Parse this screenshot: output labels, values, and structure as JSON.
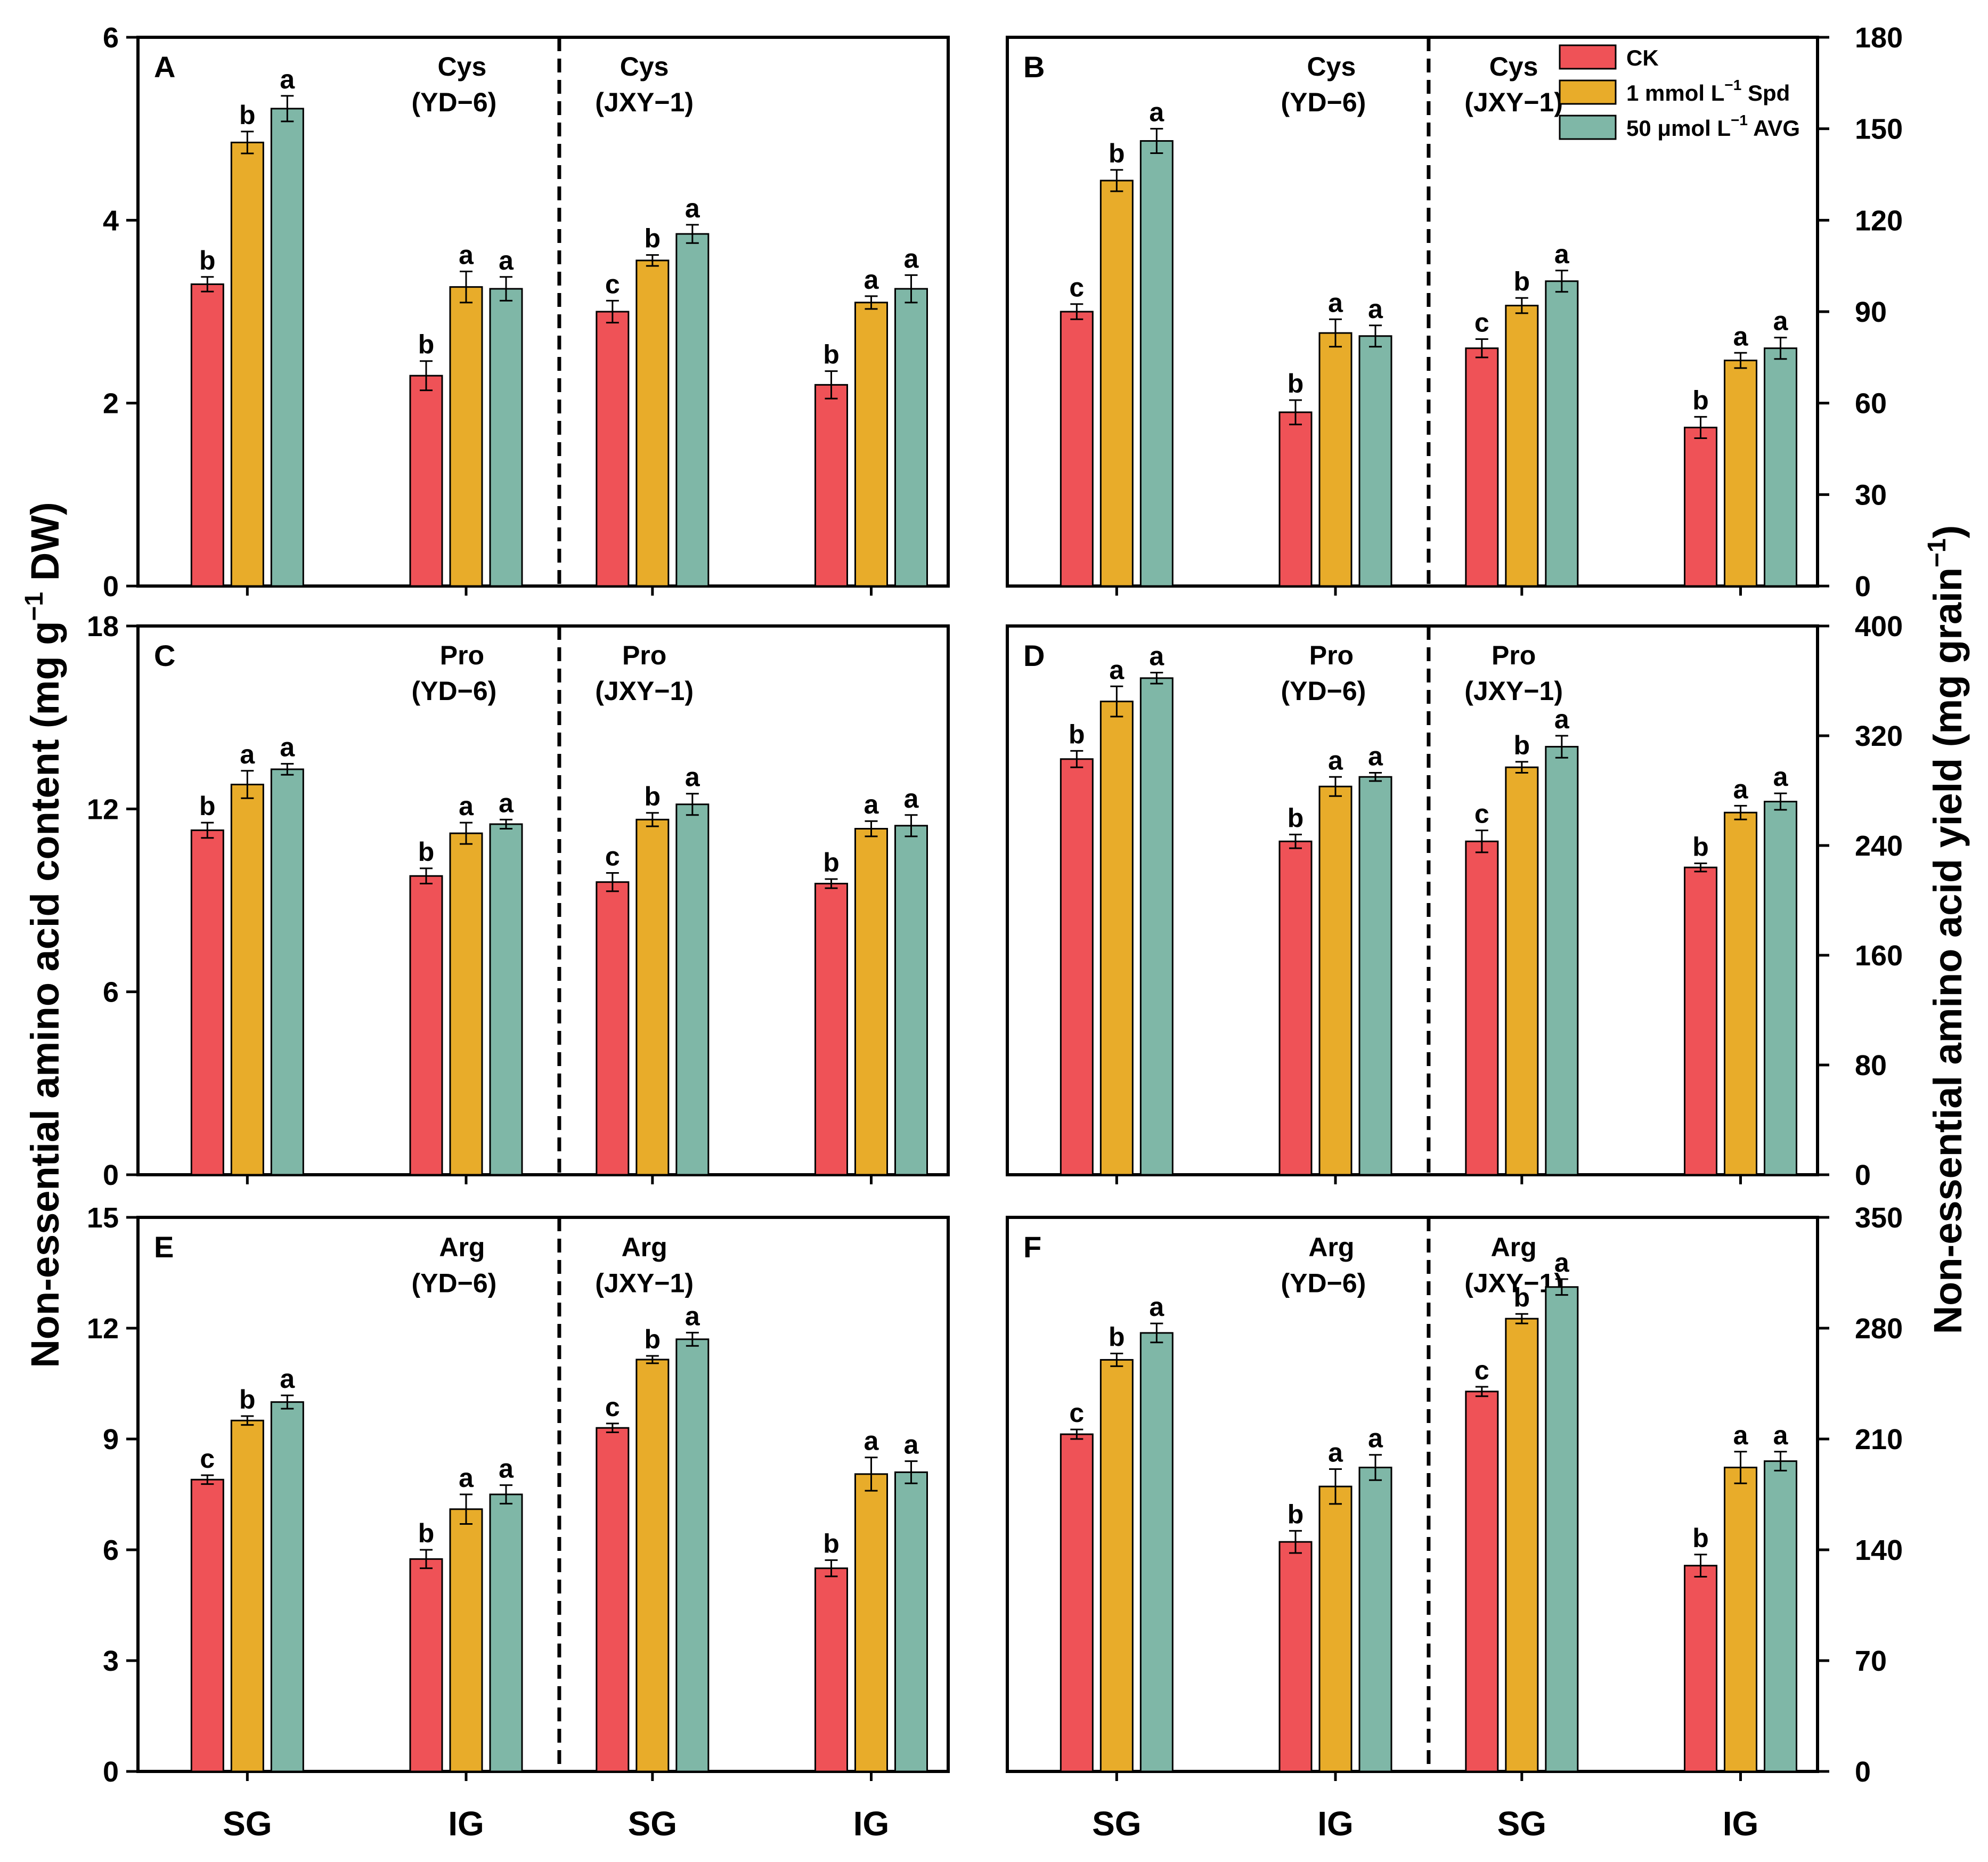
{
  "figure": {
    "left_ylabel": "Non-essential amino acid content (mg g",
    "left_ylabel_sup": "−1",
    "left_ylabel_tail": " DW)",
    "right_ylabel": "Non-essential amino acid yield (mg grain",
    "right_ylabel_sup": "−1",
    "right_ylabel_tail": ")",
    "legend": [
      {
        "label": "CK",
        "sup": "",
        "tail": "",
        "color": "#ef5257"
      },
      {
        "label": "1 mmol L",
        "sup": "−1",
        "tail": " Spd",
        "color": "#e8ac2a"
      },
      {
        "label": "50 μmol L",
        "sup": "−1",
        "tail": " AVG",
        "color": "#7fb7a7"
      }
    ],
    "colors": {
      "ck": "#ef5257",
      "spd": "#e8ac2a",
      "avg": "#7fb7a7",
      "frame": "#000000"
    }
  },
  "chart_data": [
    {
      "panel": "A",
      "type": "bar",
      "amino_acid": "Cys",
      "measure": "content",
      "ylim": [
        0,
        6
      ],
      "yticks": [
        0,
        2,
        4,
        6
      ],
      "axis_side": "left",
      "groups": [
        {
          "cultivar": "(YD−6)",
          "label": "Cys",
          "categories": [
            "SG",
            "IG"
          ],
          "x_labels_shown": false,
          "series": [
            {
              "name": "CK",
              "values": [
                3.3,
                2.3
              ],
              "errors": [
                0.08,
                0.16
              ],
              "letters": [
                "b",
                "b"
              ]
            },
            {
              "name": "1 mmol L−1 Spd",
              "values": [
                4.85,
                3.27
              ],
              "errors": [
                0.12,
                0.17
              ],
              "letters": [
                "b",
                "a"
              ]
            },
            {
              "name": "50 μmol L−1 AVG",
              "values": [
                5.22,
                3.25
              ],
              "errors": [
                0.14,
                0.13
              ],
              "letters": [
                "a",
                "a"
              ]
            }
          ]
        },
        {
          "cultivar": "(JXY−1)",
          "label": "Cys",
          "categories": [
            "SG",
            "IG"
          ],
          "x_labels_shown": false,
          "series": [
            {
              "name": "CK",
              "values": [
                3.0,
                2.2
              ],
              "errors": [
                0.12,
                0.15
              ],
              "letters": [
                "c",
                "b"
              ]
            },
            {
              "name": "1 mmol L−1 Spd",
              "values": [
                3.56,
                3.1
              ],
              "errors": [
                0.06,
                0.07
              ],
              "letters": [
                "b",
                "a"
              ]
            },
            {
              "name": "50 μmol L−1 AVG",
              "values": [
                3.85,
                3.25
              ],
              "errors": [
                0.1,
                0.15
              ],
              "letters": [
                "a",
                "a"
              ]
            }
          ]
        }
      ]
    },
    {
      "panel": "B",
      "type": "bar",
      "amino_acid": "Cys",
      "measure": "yield",
      "ylim": [
        0,
        180
      ],
      "yticks": [
        0,
        30,
        60,
        90,
        120,
        150,
        180
      ],
      "axis_side": "right",
      "groups": [
        {
          "cultivar": "(YD−6)",
          "label": "Cys",
          "categories": [
            "SG",
            "IG"
          ],
          "x_labels_shown": false,
          "series": [
            {
              "name": "CK",
              "values": [
                90,
                57
              ],
              "errors": [
                2.5,
                4
              ],
              "letters": [
                "c",
                "b"
              ]
            },
            {
              "name": "1 mmol L−1 Spd",
              "values": [
                133,
                83
              ],
              "errors": [
                3.5,
                4.5
              ],
              "letters": [
                "b",
                "a"
              ]
            },
            {
              "name": "50 μmol L−1 AVG",
              "values": [
                146,
                82
              ],
              "errors": [
                4,
                3.5
              ],
              "letters": [
                "a",
                "a"
              ]
            }
          ]
        },
        {
          "cultivar": "(JXY−1)",
          "label": "Cys",
          "categories": [
            "SG",
            "IG"
          ],
          "x_labels_shown": false,
          "series": [
            {
              "name": "CK",
              "values": [
                78,
                52
              ],
              "errors": [
                3,
                3.5
              ],
              "letters": [
                "c",
                "b"
              ]
            },
            {
              "name": "1 mmol L−1 Spd",
              "values": [
                92,
                74
              ],
              "errors": [
                2.5,
                2.5
              ],
              "letters": [
                "b",
                "a"
              ]
            },
            {
              "name": "50 μmol L−1 AVG",
              "values": [
                100,
                78
              ],
              "errors": [
                3.5,
                3.5
              ],
              "letters": [
                "a",
                "a"
              ]
            }
          ]
        }
      ]
    },
    {
      "panel": "C",
      "type": "bar",
      "amino_acid": "Pro",
      "measure": "content",
      "ylim": [
        0,
        18
      ],
      "yticks": [
        0,
        6,
        12,
        18
      ],
      "axis_side": "left",
      "groups": [
        {
          "cultivar": "(YD−6)",
          "label": "Pro",
          "categories": [
            "SG",
            "IG"
          ],
          "x_labels_shown": false,
          "series": [
            {
              "name": "CK",
              "values": [
                11.3,
                9.8
              ],
              "errors": [
                0.25,
                0.25
              ],
              "letters": [
                "b",
                "b"
              ]
            },
            {
              "name": "1 mmol L−1 Spd",
              "values": [
                12.8,
                11.2
              ],
              "errors": [
                0.45,
                0.35
              ],
              "letters": [
                "a",
                "a"
              ]
            },
            {
              "name": "50 μmol L−1 AVG",
              "values": [
                13.3,
                11.5
              ],
              "errors": [
                0.18,
                0.15
              ],
              "letters": [
                "a",
                "a"
              ]
            }
          ]
        },
        {
          "cultivar": "(JXY−1)",
          "label": "Pro",
          "categories": [
            "SG",
            "IG"
          ],
          "x_labels_shown": false,
          "series": [
            {
              "name": "CK",
              "values": [
                9.6,
                9.55
              ],
              "errors": [
                0.3,
                0.15
              ],
              "letters": [
                "c",
                "b"
              ]
            },
            {
              "name": "1 mmol L−1 Spd",
              "values": [
                11.65,
                11.35
              ],
              "errors": [
                0.22,
                0.25
              ],
              "letters": [
                "b",
                "a"
              ]
            },
            {
              "name": "50 μmol L−1 AVG",
              "values": [
                12.15,
                11.45
              ],
              "errors": [
                0.35,
                0.35
              ],
              "letters": [
                "a",
                "a"
              ]
            }
          ]
        }
      ]
    },
    {
      "panel": "D",
      "type": "bar",
      "amino_acid": "Pro",
      "measure": "yield",
      "ylim": [
        0,
        400
      ],
      "yticks": [
        0,
        80,
        160,
        240,
        320,
        400
      ],
      "axis_side": "right",
      "groups": [
        {
          "cultivar": "(YD−6)",
          "label": "Pro",
          "categories": [
            "SG",
            "IG"
          ],
          "x_labels_shown": false,
          "series": [
            {
              "name": "CK",
              "values": [
                303,
                243
              ],
              "errors": [
                6,
                5
              ],
              "letters": [
                "b",
                "b"
              ]
            },
            {
              "name": "1 mmol L−1 Spd",
              "values": [
                345,
                283
              ],
              "errors": [
                11,
                7
              ],
              "letters": [
                "a",
                "a"
              ]
            },
            {
              "name": "50 μmol L−1 AVG",
              "values": [
                362,
                290
              ],
              "errors": [
                4,
                3
              ],
              "letters": [
                "a",
                "a"
              ]
            }
          ]
        },
        {
          "cultivar": "(JXY−1)",
          "label": "Pro",
          "categories": [
            "SG",
            "IG"
          ],
          "x_labels_shown": false,
          "series": [
            {
              "name": "CK",
              "values": [
                243,
                224
              ],
              "errors": [
                8,
                3
              ],
              "letters": [
                "c",
                "b"
              ]
            },
            {
              "name": "1 mmol L−1 Spd",
              "values": [
                297,
                264
              ],
              "errors": [
                4,
                5
              ],
              "letters": [
                "b",
                "a"
              ]
            },
            {
              "name": "50 μmol L−1 AVG",
              "values": [
                312,
                272
              ],
              "errors": [
                8,
                6
              ],
              "letters": [
                "a",
                "a"
              ]
            }
          ]
        }
      ]
    },
    {
      "panel": "E",
      "type": "bar",
      "amino_acid": "Arg",
      "measure": "content",
      "ylim": [
        0,
        15
      ],
      "yticks": [
        0,
        3,
        6,
        9,
        12,
        15
      ],
      "axis_side": "left",
      "groups": [
        {
          "cultivar": "(YD−6)",
          "label": "Arg",
          "categories": [
            "SG",
            "IG"
          ],
          "x_labels_shown": true,
          "series": [
            {
              "name": "CK",
              "values": [
                7.9,
                5.75
              ],
              "errors": [
                0.12,
                0.25
              ],
              "letters": [
                "c",
                "b"
              ]
            },
            {
              "name": "1 mmol L−1 Spd",
              "values": [
                9.5,
                7.1
              ],
              "errors": [
                0.12,
                0.4
              ],
              "letters": [
                "b",
                "a"
              ]
            },
            {
              "name": "50 μmol L−1 AVG",
              "values": [
                10.0,
                7.5
              ],
              "errors": [
                0.18,
                0.25
              ],
              "letters": [
                "a",
                "a"
              ]
            }
          ]
        },
        {
          "cultivar": "(JXY−1)",
          "label": "Arg",
          "categories": [
            "SG",
            "IG"
          ],
          "x_labels_shown": true,
          "series": [
            {
              "name": "CK",
              "values": [
                9.3,
                5.5
              ],
              "errors": [
                0.12,
                0.22
              ],
              "letters": [
                "c",
                "b"
              ]
            },
            {
              "name": "1 mmol L−1 Spd",
              "values": [
                11.15,
                8.05
              ],
              "errors": [
                0.1,
                0.45
              ],
              "letters": [
                "b",
                "a"
              ]
            },
            {
              "name": "50 μmol L−1 AVG",
              "values": [
                11.7,
                8.1
              ],
              "errors": [
                0.18,
                0.3
              ],
              "letters": [
                "a",
                "a"
              ]
            }
          ]
        }
      ]
    },
    {
      "panel": "F",
      "type": "bar",
      "amino_acid": "Arg",
      "measure": "yield",
      "ylim": [
        0,
        350
      ],
      "yticks": [
        0,
        70,
        140,
        210,
        280,
        350
      ],
      "axis_side": "right",
      "groups": [
        {
          "cultivar": "(YD−6)",
          "label": "Arg",
          "categories": [
            "SG",
            "IG"
          ],
          "x_labels_shown": true,
          "series": [
            {
              "name": "CK",
              "values": [
                213,
                145
              ],
              "errors": [
                3,
                7
              ],
              "letters": [
                "c",
                "b"
              ]
            },
            {
              "name": "1 mmol L−1 Spd",
              "values": [
                260,
                180
              ],
              "errors": [
                4,
                11
              ],
              "letters": [
                "b",
                "a"
              ]
            },
            {
              "name": "50 μmol L−1 AVG",
              "values": [
                277,
                192
              ],
              "errors": [
                6,
                8
              ],
              "letters": [
                "a",
                "a"
              ]
            }
          ]
        },
        {
          "cultivar": "(JXY−1)",
          "label": "Arg",
          "categories": [
            "SG",
            "IG"
          ],
          "x_labels_shown": true,
          "series": [
            {
              "name": "CK",
              "values": [
                240,
                130
              ],
              "errors": [
                3,
                7
              ],
              "letters": [
                "c",
                "b"
              ]
            },
            {
              "name": "1 mmol L−1 Spd",
              "values": [
                286,
                192
              ],
              "errors": [
                3,
                10
              ],
              "letters": [
                "b",
                "a"
              ]
            },
            {
              "name": "50 μmol L−1 AVG",
              "values": [
                306,
                196
              ],
              "errors": [
                5,
                6
              ],
              "letters": [
                "a",
                "a"
              ]
            }
          ]
        }
      ]
    }
  ]
}
